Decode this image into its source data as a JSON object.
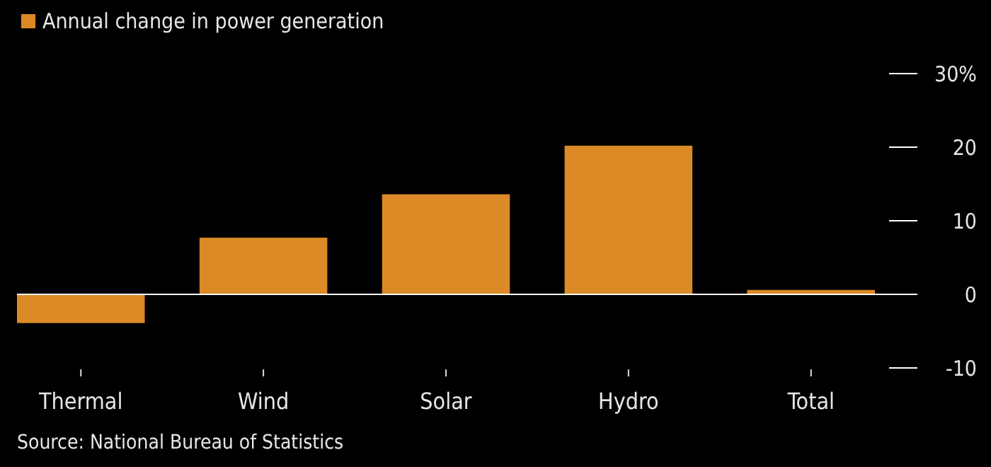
{
  "chart_data": {
    "type": "bar",
    "categories": [
      "Thermal",
      "Wind",
      "Solar",
      "Hydro",
      "Total"
    ],
    "series": [
      {
        "name": "Annual change in power generation",
        "color": "#dc8a26",
        "values": [
          -3.9,
          7.7,
          13.6,
          20.2,
          0.6
        ]
      }
    ],
    "ylim": [
      -10,
      30
    ],
    "yticks": [
      -10,
      0,
      10,
      20,
      {
        "value": 30,
        "label": "30%"
      }
    ],
    "legend": "top left",
    "grid": "y",
    "annotations": [
      "Source: National Bureau of Statistics"
    ]
  }
}
